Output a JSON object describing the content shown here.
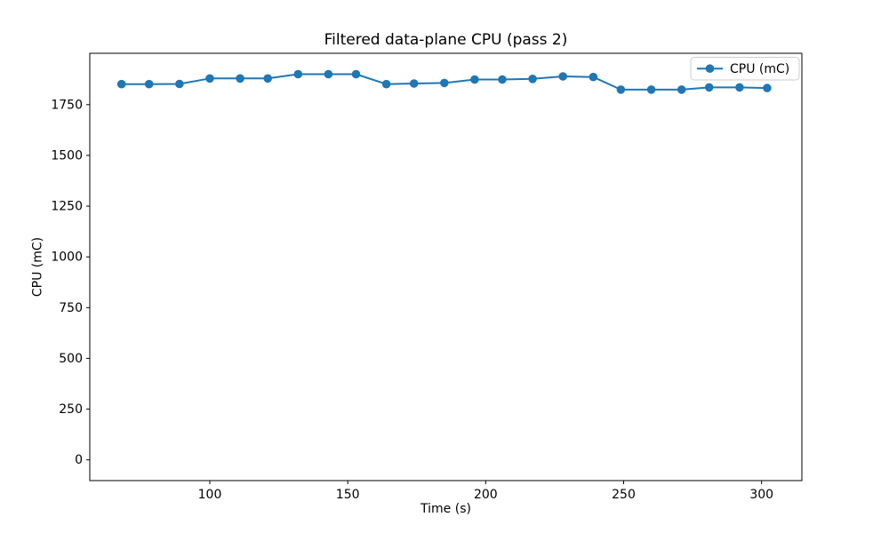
{
  "figure": {
    "background": "#ffffff"
  },
  "chart_data": {
    "type": "line",
    "title": "Filtered data-plane CPU (pass 2)",
    "xlabel": "Time (s)",
    "ylabel": "CPU (mC)",
    "grid": false,
    "legend": {
      "position": "upper right",
      "entries": [
        "CPU (mC)"
      ]
    },
    "series": [
      {
        "name": "CPU (mC)",
        "color": "#1f77b4",
        "marker": "circle",
        "x": [
          68,
          78,
          89,
          100,
          111,
          121,
          132,
          143,
          153,
          164,
          174,
          185,
          196,
          206,
          217,
          228,
          239,
          249,
          260,
          271,
          281,
          292,
          302
        ],
        "y": [
          1851,
          1851,
          1852,
          1879,
          1879,
          1879,
          1900,
          1900,
          1900,
          1851,
          1854,
          1857,
          1874,
          1874,
          1877,
          1889,
          1886,
          1824,
          1824,
          1824,
          1835,
          1835,
          1832
        ]
      }
    ],
    "xlim": [
      56.5,
      314.6
    ],
    "ylim": [
      -102,
      2003
    ],
    "xticks": [
      100,
      150,
      200,
      250,
      300
    ],
    "yticks": [
      0,
      250,
      500,
      750,
      1000,
      1250,
      1500,
      1750
    ]
  }
}
